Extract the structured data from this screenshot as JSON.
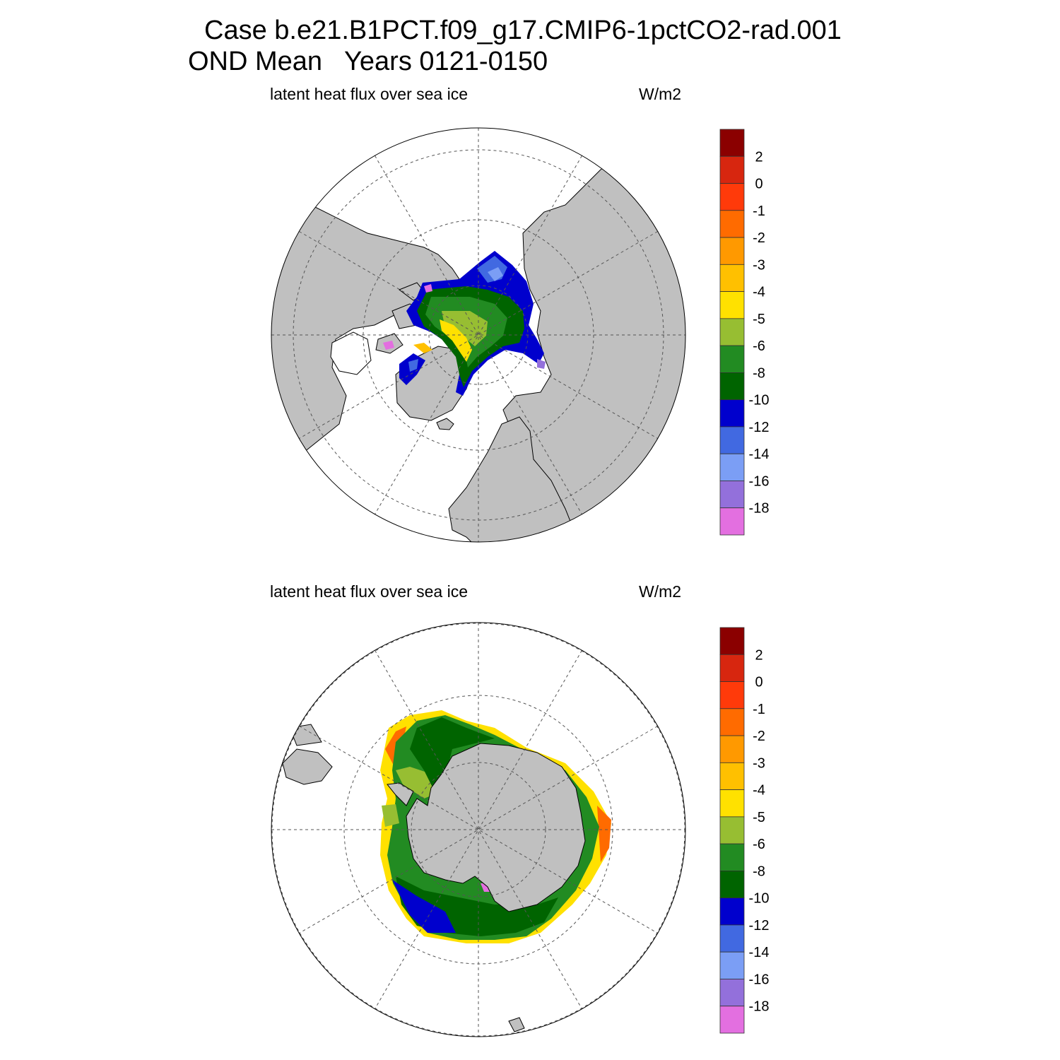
{
  "title": {
    "line1": "Case b.e21.B1PCT.f09_g17.CMIP6-1pctCO2-rad.001",
    "line2": "OND Mean   Years 0121-0150"
  },
  "chart_data": [
    {
      "type": "heatmap",
      "projection": "polar stereographic",
      "hemisphere": "north",
      "left_label": "latent heat flux over sea ice",
      "right_label": "W/m2",
      "colorbar": {
        "levels": [
          "2",
          "0",
          "-1",
          "-2",
          "-3",
          "-4",
          "-5",
          "-6",
          "-8",
          "-10",
          "-12",
          "-14",
          "-16",
          "-18"
        ],
        "colors": [
          "#8b0000",
          "#d7260f",
          "#ff3a0a",
          "#ff6b00",
          "#ff9900",
          "#ffc000",
          "#ffe100",
          "#97be32",
          "#228b22",
          "#006400",
          "#0000cd",
          "#4169e1",
          "#7b9ef5",
          "#9370db",
          "#e36fe0"
        ]
      },
      "land_color": "#c0c0c0",
      "grid": true
    },
    {
      "type": "heatmap",
      "projection": "polar stereographic",
      "hemisphere": "south",
      "left_label": "latent heat flux over sea ice",
      "right_label": "W/m2",
      "colorbar": {
        "levels": [
          "2",
          "0",
          "-1",
          "-2",
          "-3",
          "-4",
          "-5",
          "-6",
          "-8",
          "-10",
          "-12",
          "-14",
          "-16",
          "-18"
        ],
        "colors": [
          "#8b0000",
          "#d7260f",
          "#ff3a0a",
          "#ff6b00",
          "#ff9900",
          "#ffc000",
          "#ffe100",
          "#97be32",
          "#228b22",
          "#006400",
          "#0000cd",
          "#4169e1",
          "#7b9ef5",
          "#9370db",
          "#e36fe0"
        ]
      },
      "land_color": "#c0c0c0",
      "grid": true
    }
  ]
}
